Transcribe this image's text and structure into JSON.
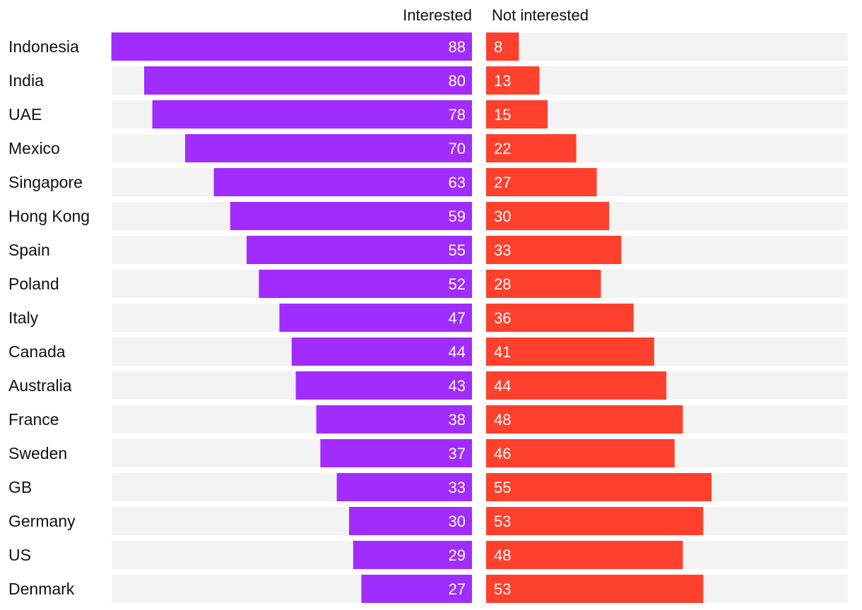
{
  "chart_data": {
    "type": "bar",
    "title": "",
    "xlabel": "",
    "ylabel": "",
    "xlim": [
      0,
      100
    ],
    "series": [
      {
        "name": "Interested",
        "color": "#a12cff",
        "values": [
          88,
          80,
          78,
          70,
          63,
          59,
          55,
          52,
          47,
          44,
          43,
          38,
          37,
          33,
          30,
          29,
          27
        ]
      },
      {
        "name": "Not interested",
        "color": "#ff402d",
        "values": [
          8,
          13,
          15,
          22,
          27,
          30,
          33,
          28,
          36,
          41,
          44,
          48,
          46,
          55,
          53,
          48,
          53
        ]
      }
    ],
    "categories": [
      "Indonesia",
      "India",
      "UAE",
      "Mexico",
      "Singapore",
      "Hong Kong",
      "Spain",
      "Poland",
      "Italy",
      "Canada",
      "Australia",
      "France",
      "Sweden",
      "GB",
      "Germany",
      "US",
      "Denmark"
    ],
    "track_color": "#f3f3f3"
  }
}
